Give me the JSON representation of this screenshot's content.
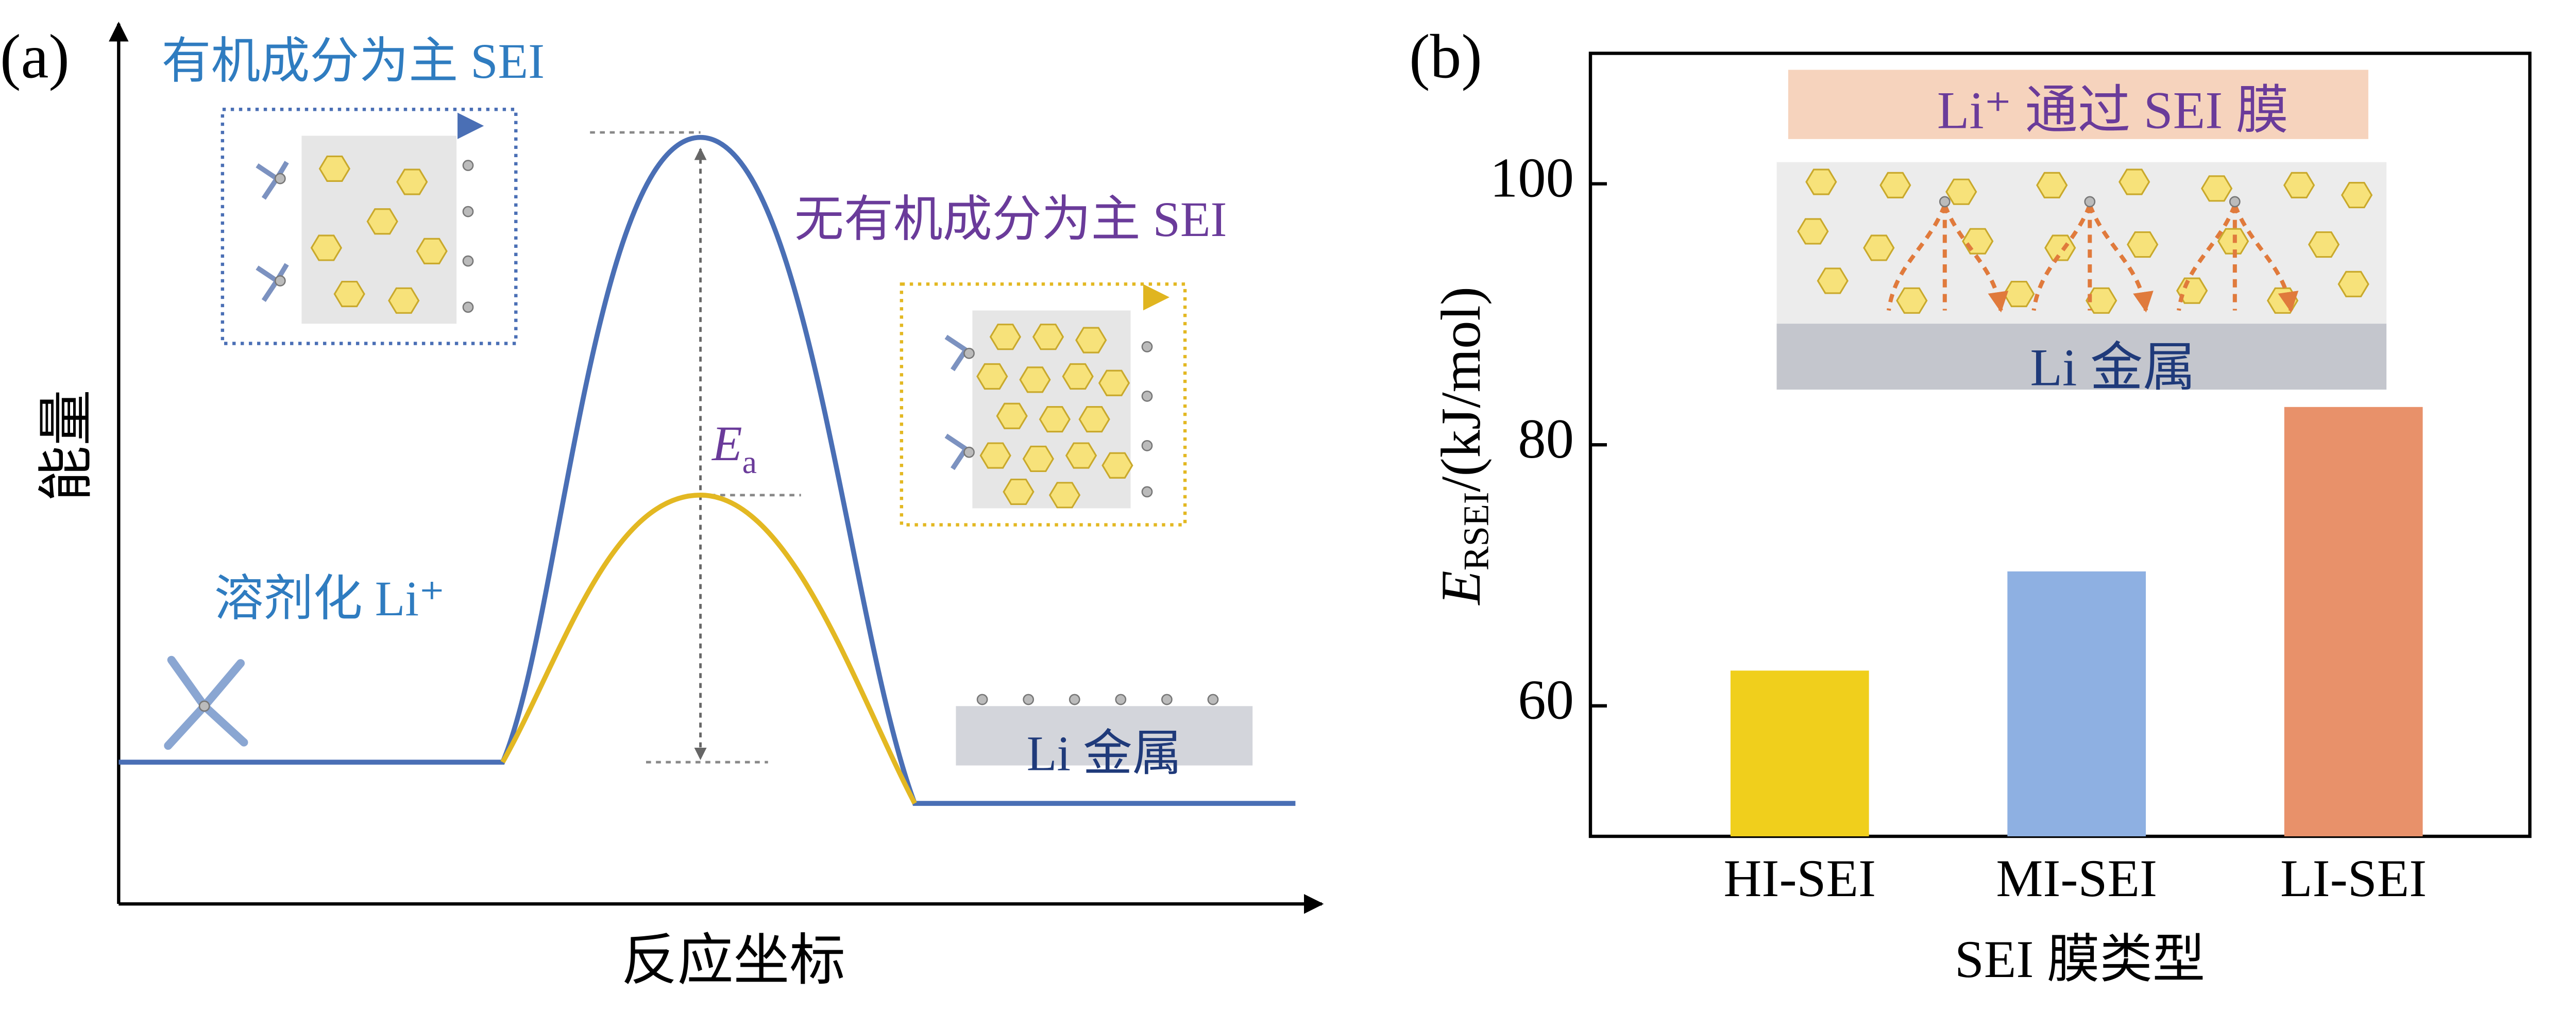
{
  "diagram": {
    "panel_label": "(a)",
    "organic_label": "有机成分为主 SEI",
    "inorganic_label": "无有机成分为主 SEI",
    "solvated_label": "溶剂化 Li⁺",
    "metal_label": "Li 金属",
    "ea_main": "E",
    "ea_sub": "a",
    "ylabel": "能量",
    "xlabel": "反应坐标"
  },
  "chart_data": {
    "type": "bar",
    "panel_label": "(b)",
    "inset_top": "Li⁺ 通过 SEI 膜",
    "inset_bottom": "Li 金属",
    "ylabel_main": "E",
    "ylabel_sub": "RSEI",
    "ylabel_rest": "/(kJ/mol)",
    "xlabel": "SEI 膜类型",
    "categories": [
      "HI-SEI",
      "MI-SEI",
      "LI-SEI"
    ],
    "values": [
      62.7,
      70.3,
      82.9
    ],
    "colors": [
      "#f0cf1c",
      "#8eb0e2",
      "#e8916a"
    ],
    "ylim": [
      50,
      110
    ],
    "yticks": [
      60,
      80,
      100
    ],
    "grid": false
  }
}
